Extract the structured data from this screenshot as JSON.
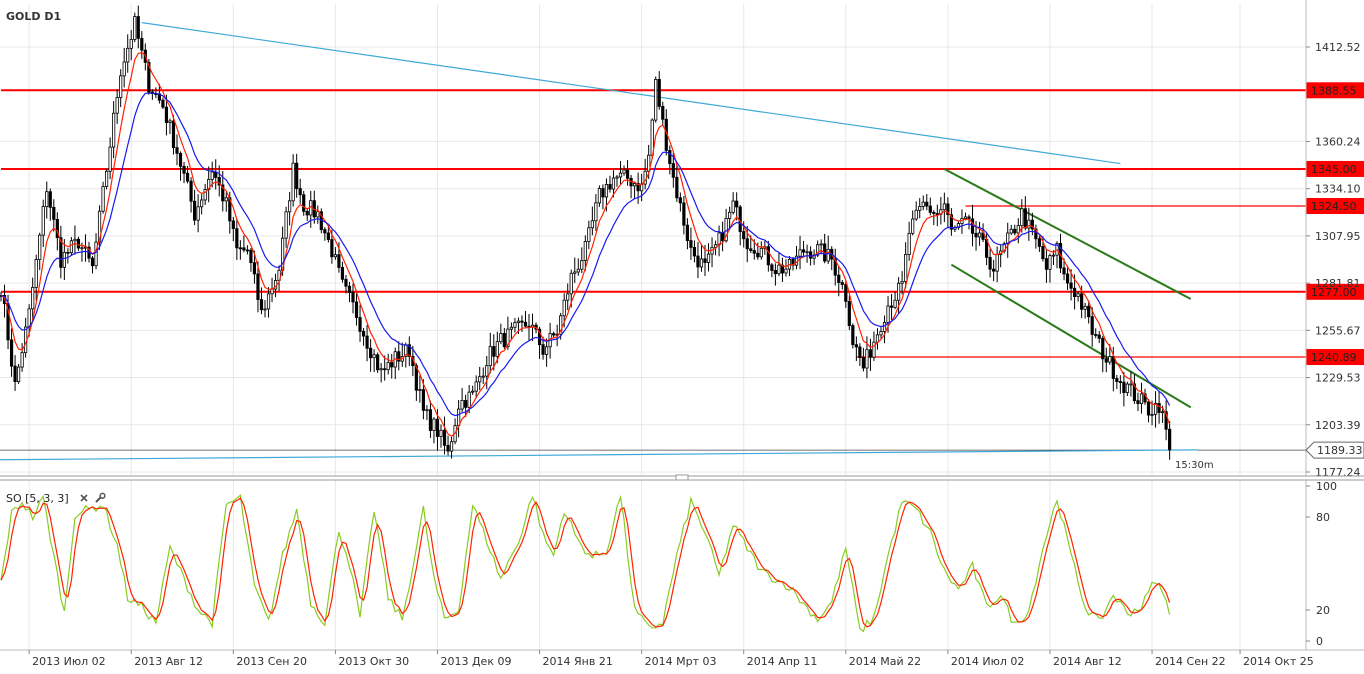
{
  "chart_title": "GOLD D1",
  "indicator_label": "SO [5, 3, 3]",
  "countdown": "15:30m",
  "icons": {
    "close": "close-icon",
    "settings": "wrench-icon"
  },
  "colors": {
    "level": "#ff0000",
    "trend": "#3fa9d6",
    "channel": "#2a7a1a",
    "ma_fast": "#ff2200",
    "ma_slow": "#1a1aee",
    "so_k": "#88cc22",
    "so_d": "#ff2200",
    "candle": "#000000",
    "grid": "#e8e8e8",
    "countdown": "#e8a000"
  },
  "chart_data": {
    "type": "candlestick",
    "symbol": "GOLD",
    "timeframe": "D1",
    "ylim": [
      1177.24,
      1430
    ],
    "y_ticks": [
      "1412.52",
      "1360.24",
      "1334.10",
      "1307.95",
      "1281.81",
      "1255.67",
      "1229.53",
      "1203.39",
      "1177.24"
    ],
    "x_ticks": [
      "2013 Июл 02",
      "2013 Авг 12",
      "2013 Сен 20",
      "2013 Окт 30",
      "2013 Дек 09",
      "2014 Янв 21",
      "2014 Мрт 03",
      "2014 Апр 11",
      "2014 Май 22",
      "2014 Июл 02",
      "2014 Авг 12",
      "2014 Сен 22",
      "2014 Окт 25"
    ],
    "x_tick_index": [
      8,
      37,
      66,
      95,
      124,
      153,
      182,
      211,
      240,
      269,
      298,
      327,
      352
    ],
    "bar_count": 360,
    "current_price": "1189.33",
    "levels": [
      {
        "price": 1388.55,
        "label": "1388.55",
        "from": 0
      },
      {
        "price": 1345.0,
        "label": "1345.00",
        "from": 0
      },
      {
        "price": 1324.5,
        "label": "1324.50",
        "from": 274
      },
      {
        "price": 1277.0,
        "label": "1277.00",
        "from": 0
      },
      {
        "price": 1240.89,
        "label": "1240.89",
        "from": 243
      }
    ],
    "trendlines": [
      {
        "kind": "trend",
        "points": [
          [
            40,
            1426
          ],
          [
            318,
            1348
          ]
        ]
      },
      {
        "kind": "trend",
        "points": [
          [
            -2,
            1184
          ],
          [
            340,
            1189.5
          ]
        ]
      },
      {
        "kind": "channel",
        "points": [
          [
            268,
            1345
          ],
          [
            338,
            1273
          ]
        ]
      },
      {
        "kind": "channel",
        "points": [
          [
            270,
            1292
          ],
          [
            338,
            1213
          ]
        ]
      }
    ],
    "anchors": [
      [
        0,
        1280
      ],
      [
        4,
        1225
      ],
      [
        8,
        1265
      ],
      [
        13,
        1335
      ],
      [
        17,
        1295
      ],
      [
        22,
        1305
      ],
      [
        26,
        1290
      ],
      [
        30,
        1345
      ],
      [
        34,
        1400
      ],
      [
        38,
        1425
      ],
      [
        42,
        1392
      ],
      [
        46,
        1380
      ],
      [
        50,
        1355
      ],
      [
        55,
        1320
      ],
      [
        60,
        1345
      ],
      [
        64,
        1325
      ],
      [
        67,
        1300
      ],
      [
        70,
        1300
      ],
      [
        74,
        1265
      ],
      [
        79,
        1290
      ],
      [
        83,
        1345
      ],
      [
        86,
        1325
      ],
      [
        90,
        1320
      ],
      [
        94,
        1300
      ],
      [
        97,
        1280
      ],
      [
        101,
        1265
      ],
      [
        104,
        1250
      ],
      [
        108,
        1232
      ],
      [
        112,
        1240
      ],
      [
        116,
        1245
      ],
      [
        120,
        1210
      ],
      [
        124,
        1200
      ],
      [
        127,
        1187
      ],
      [
        130,
        1215
      ],
      [
        134,
        1220
      ],
      [
        138,
        1240
      ],
      [
        142,
        1250
      ],
      [
        146,
        1255
      ],
      [
        150,
        1260
      ],
      [
        154,
        1245
      ],
      [
        158,
        1255
      ],
      [
        162,
        1285
      ],
      [
        166,
        1300
      ],
      [
        170,
        1330
      ],
      [
        174,
        1340
      ],
      [
        178,
        1340
      ],
      [
        182,
        1335
      ],
      [
        184,
        1352
      ],
      [
        186,
        1392
      ],
      [
        188,
        1370
      ],
      [
        191,
        1340
      ],
      [
        196,
        1300
      ],
      [
        200,
        1290
      ],
      [
        204,
        1305
      ],
      [
        208,
        1325
      ],
      [
        212,
        1305
      ],
      [
        216,
        1300
      ],
      [
        220,
        1290
      ],
      [
        224,
        1290
      ],
      [
        228,
        1300
      ],
      [
        232,
        1300
      ],
      [
        236,
        1295
      ],
      [
        240,
        1275
      ],
      [
        242,
        1250
      ],
      [
        245,
        1235
      ],
      [
        248,
        1250
      ],
      [
        252,
        1270
      ],
      [
        256,
        1280
      ],
      [
        258,
        1310
      ],
      [
        262,
        1325
      ],
      [
        266,
        1320
      ],
      [
        268,
        1325
      ],
      [
        270,
        1310
      ],
      [
        274,
        1315
      ],
      [
        278,
        1305
      ],
      [
        282,
        1290
      ],
      [
        286,
        1305
      ],
      [
        290,
        1320
      ],
      [
        294,
        1305
      ],
      [
        297,
        1290
      ],
      [
        300,
        1300
      ],
      [
        302,
        1285
      ],
      [
        306,
        1275
      ],
      [
        310,
        1255
      ],
      [
        314,
        1240
      ],
      [
        318,
        1228
      ],
      [
        322,
        1220
      ],
      [
        326,
        1212
      ],
      [
        329,
        1215
      ],
      [
        331,
        1200
      ],
      [
        332,
        1187
      ]
    ],
    "so_ylim": [
      0,
      100
    ],
    "so_ticks": [
      "100",
      "80",
      "20",
      "0"
    ],
    "so_k": [
      [
        0,
        38
      ],
      [
        3,
        82
      ],
      [
        6,
        90
      ],
      [
        9,
        80
      ],
      [
        12,
        92
      ],
      [
        15,
        55
      ],
      [
        18,
        18
      ],
      [
        21,
        82
      ],
      [
        25,
        85
      ],
      [
        29,
        88
      ],
      [
        33,
        62
      ],
      [
        36,
        28
      ],
      [
        40,
        22
      ],
      [
        44,
        12
      ],
      [
        48,
        60
      ],
      [
        52,
        40
      ],
      [
        56,
        20
      ],
      [
        60,
        12
      ],
      [
        64,
        88
      ],
      [
        68,
        92
      ],
      [
        72,
        35
      ],
      [
        76,
        12
      ],
      [
        80,
        55
      ],
      [
        84,
        85
      ],
      [
        88,
        25
      ],
      [
        92,
        12
      ],
      [
        96,
        72
      ],
      [
        99,
        50
      ],
      [
        102,
        15
      ],
      [
        106,
        85
      ],
      [
        110,
        28
      ],
      [
        114,
        14
      ],
      [
        118,
        60
      ],
      [
        120,
        85
      ],
      [
        123,
        40
      ],
      [
        126,
        14
      ],
      [
        130,
        20
      ],
      [
        134,
        88
      ],
      [
        138,
        65
      ],
      [
        142,
        40
      ],
      [
        145,
        55
      ],
      [
        148,
        70
      ],
      [
        151,
        95
      ],
      [
        154,
        68
      ],
      [
        157,
        55
      ],
      [
        160,
        85
      ],
      [
        164,
        64
      ],
      [
        168,
        54
      ],
      [
        172,
        58
      ],
      [
        176,
        94
      ],
      [
        180,
        20
      ],
      [
        184,
        8
      ],
      [
        188,
        12
      ],
      [
        192,
        55
      ],
      [
        196,
        90
      ],
      [
        200,
        70
      ],
      [
        204,
        42
      ],
      [
        208,
        75
      ],
      [
        212,
        60
      ],
      [
        216,
        45
      ],
      [
        220,
        40
      ],
      [
        224,
        35
      ],
      [
        228,
        24
      ],
      [
        232,
        14
      ],
      [
        236,
        25
      ],
      [
        240,
        60
      ],
      [
        244,
        6
      ],
      [
        248,
        15
      ],
      [
        252,
        55
      ],
      [
        256,
        90
      ],
      [
        260,
        85
      ],
      [
        264,
        70
      ],
      [
        268,
        45
      ],
      [
        272,
        33
      ],
      [
        276,
        48
      ],
      [
        280,
        22
      ],
      [
        284,
        30
      ],
      [
        288,
        10
      ],
      [
        292,
        20
      ],
      [
        296,
        60
      ],
      [
        300,
        92
      ],
      [
        304,
        55
      ],
      [
        308,
        22
      ],
      [
        312,
        12
      ],
      [
        316,
        30
      ],
      [
        320,
        18
      ],
      [
        324,
        22
      ],
      [
        328,
        40
      ],
      [
        332,
        20
      ]
    ]
  }
}
